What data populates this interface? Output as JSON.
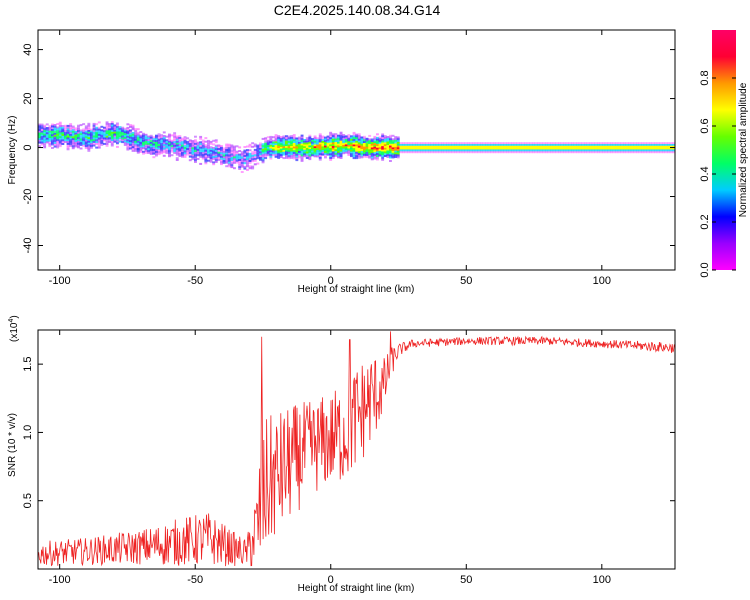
{
  "figure_title": "C2E4.2025.140.08.34.G14",
  "chart_data": [
    {
      "type": "heatmap",
      "xlabel": "Height of straight line (km)",
      "ylabel": "Frequency (Hz)",
      "xlim": [
        -108,
        127
      ],
      "ylim": [
        -50,
        48
      ],
      "xticks": [
        -100,
        -50,
        0,
        50,
        100
      ],
      "yticks": [
        40,
        20,
        0,
        -20,
        -40
      ],
      "grid": false,
      "colorbar": {
        "label": "Normalized spectral amplitude",
        "range": [
          0.0,
          1.0
        ],
        "ticks": [
          0.0,
          0.2,
          0.4,
          0.6,
          0.8
        ],
        "tick_labels": [
          "0.0",
          "0.2",
          "0.4",
          "0.6",
          "0.8"
        ],
        "colormap": [
          "#ff00ff",
          "#9900ff",
          "#0000ff",
          "#00ccff",
          "#00ff66",
          "#66ff00",
          "#ffff00",
          "#ff9900",
          "#ff0033",
          "#ff0066"
        ]
      },
      "ridge": {
        "x": [
          -108,
          -100,
          -90,
          -80,
          -70,
          -60,
          -50,
          -40,
          -33,
          -28,
          -24,
          -20,
          -10,
          0,
          5,
          10,
          15,
          20,
          30,
          50,
          80,
          100,
          127
        ],
        "frequency": [
          5,
          5,
          4,
          6,
          2,
          1,
          -1,
          -3,
          -5,
          -3,
          0,
          0,
          0,
          0.5,
          1,
          0.5,
          0,
          0,
          0,
          0,
          0,
          0,
          0
        ],
        "amplitude": [
          0.45,
          0.5,
          0.45,
          0.5,
          0.4,
          0.4,
          0.35,
          0.35,
          0.3,
          0.3,
          0.55,
          0.7,
          0.75,
          0.8,
          0.8,
          0.85,
          0.85,
          0.9,
          0.9,
          0.9,
          0.9,
          0.9,
          0.9
        ]
      }
    },
    {
      "type": "line",
      "xlabel": "Height of straight line (km)",
      "ylabel": "SNR (10 * v/v)",
      "scale_note": "(x10",
      "scale_exponent": "4",
      "xlim": [
        -108,
        127
      ],
      "ylim": [
        0,
        1.75
      ],
      "xticks": [
        -100,
        -50,
        0,
        50,
        100
      ],
      "yticks": [
        1.5,
        1.0,
        0.5
      ],
      "ytick_labels": [
        "1.5",
        "1.0",
        "0.5"
      ],
      "grid": false,
      "series": [
        {
          "color": "#ee2222",
          "envelope_x": [
            -108,
            -90,
            -70,
            -55,
            -45,
            -35,
            -31,
            -27,
            -25,
            -23,
            -18,
            -12,
            -8,
            0,
            5,
            10,
            15,
            20,
            22,
            25,
            30,
            50,
            80,
            100,
            127
          ],
          "envelope_mid": [
            0.11,
            0.13,
            0.16,
            0.2,
            0.22,
            0.14,
            0.12,
            0.3,
            0.55,
            0.62,
            0.72,
            0.82,
            0.88,
            0.95,
            1.0,
            1.12,
            1.25,
            1.35,
            1.5,
            1.6,
            1.65,
            1.67,
            1.67,
            1.65,
            1.62
          ],
          "envelope_spread": [
            0.09,
            0.1,
            0.13,
            0.18,
            0.2,
            0.12,
            0.1,
            0.35,
            0.55,
            0.5,
            0.45,
            0.4,
            0.35,
            0.35,
            0.38,
            0.4,
            0.35,
            0.2,
            0.12,
            0.05,
            0.03,
            0.03,
            0.03,
            0.03,
            0.04
          ],
          "peaks": [
            {
              "x": -25.5,
              "y": 1.7
            },
            {
              "x": 7,
              "y": 1.68
            },
            {
              "x": 22,
              "y": 1.74
            }
          ]
        }
      ]
    }
  ]
}
